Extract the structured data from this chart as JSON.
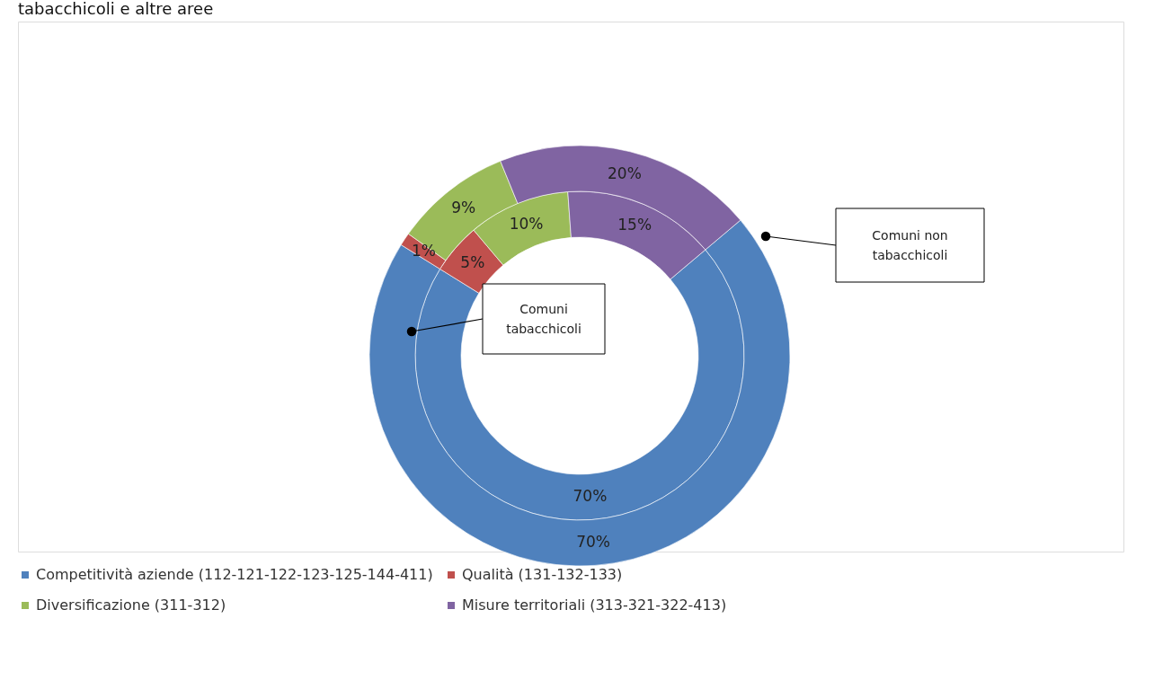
{
  "chart_data": {
    "type": "donut",
    "title": "tabacchicoli e altre aree",
    "categories": [
      "Competitività aziende (112-121-122-123-125-144-411)",
      "Qualità (131-132-133)",
      "Diversificazione (311-312)",
      "Misure territoriali (313-321-322-413)"
    ],
    "colors": [
      "#4f81bd",
      "#c0504d",
      "#9bbb59",
      "#8064a2"
    ],
    "series": [
      {
        "name": "Comuni tabacchicoli",
        "values": [
          70,
          5,
          10,
          15
        ],
        "value_labels": [
          "70%",
          "5%",
          "10%",
          "15%"
        ]
      },
      {
        "name": "Comuni non tabacchicoli",
        "values": [
          70,
          1,
          9,
          20
        ],
        "value_labels": [
          "70%",
          "1%",
          "9%",
          "20%"
        ]
      }
    ],
    "legend": "bottom"
  }
}
